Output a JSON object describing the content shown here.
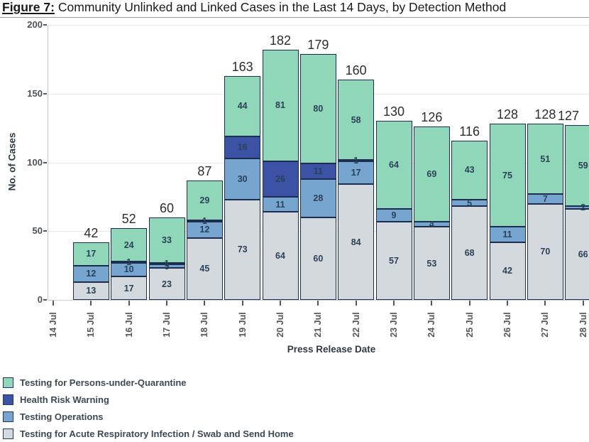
{
  "title": {
    "prefix": "Figure 7:",
    "rest": "Community Unlinked and Linked Cases in the Last 14 Days, by Detection Method"
  },
  "axes": {
    "x_title": "Press Release Date",
    "y_title": "No. of Cases"
  },
  "colors": {
    "quarantine_green": "#90d7ba",
    "health_risk_dark_blue": "#3c52a4",
    "testing_ops_blue": "#76a5cf",
    "ari_swab_gray": "#d3d9dd",
    "bar_border": "#1d2d4f",
    "gridline": "#e9eaec",
    "axis_line": "#c5c9cc",
    "tick": "#55585c"
  },
  "legend": {
    "items": [
      {
        "label": "Testing for Persons-under-Quarantine",
        "color": "#90d7ba"
      },
      {
        "label": "Health Risk Warning",
        "color": "#3c52a4"
      },
      {
        "label": "Testing Operations",
        "color": "#76a5cf"
      },
      {
        "label": "Testing for Acute Respiratory Infection / Swab and Send Home",
        "color": "#d3d9dd"
      }
    ]
  },
  "chart_data": {
    "type": "bar",
    "stacked": true,
    "title": "Figure 7: Community Unlinked and Linked Cases in the Last 14 Days, by Detection Method",
    "categories": [
      "14 Jul",
      "15 Jul",
      "16 Jul",
      "17 Jul",
      "18 Jul",
      "19 Jul",
      "20 Jul",
      "21 Jul",
      "22 Jul",
      "23 Jul",
      "24 Jul",
      "25 Jul",
      "26 Jul",
      "27 Jul",
      "28 Jul"
    ],
    "series": [
      {
        "name": "Testing for Acute Respiratory Infection / Swab and Send Home",
        "color": "#d3d9dd",
        "values": [
          0,
          13,
          17,
          23,
          45,
          73,
          64,
          60,
          84,
          57,
          53,
          68,
          42,
          70,
          66
        ]
      },
      {
        "name": "Testing Operations",
        "color": "#76a5cf",
        "values": [
          0,
          12,
          10,
          3,
          12,
          30,
          11,
          28,
          17,
          9,
          4,
          5,
          11,
          7,
          2
        ]
      },
      {
        "name": "Health Risk Warning",
        "color": "#3c52a4",
        "values": [
          0,
          0,
          1,
          1,
          1,
          16,
          26,
          11,
          1,
          0,
          0,
          0,
          0,
          0,
          0
        ]
      },
      {
        "name": "Testing for Persons-under-Quarantine",
        "color": "#90d7ba",
        "values": [
          0,
          17,
          24,
          33,
          29,
          44,
          81,
          80,
          58,
          64,
          69,
          43,
          75,
          51,
          59
        ]
      }
    ],
    "totals": [
      null,
      42,
      52,
      60,
      87,
      163,
      182,
      179,
      160,
      130,
      126,
      116,
      128,
      128,
      127
    ],
    "xlabel": "Press Release Date",
    "ylabel": "No. of Cases",
    "ylim": [
      0,
      200
    ],
    "yticks": [
      0,
      50,
      100,
      150,
      200
    ],
    "grid": true,
    "legend_position": "bottom-left"
  }
}
